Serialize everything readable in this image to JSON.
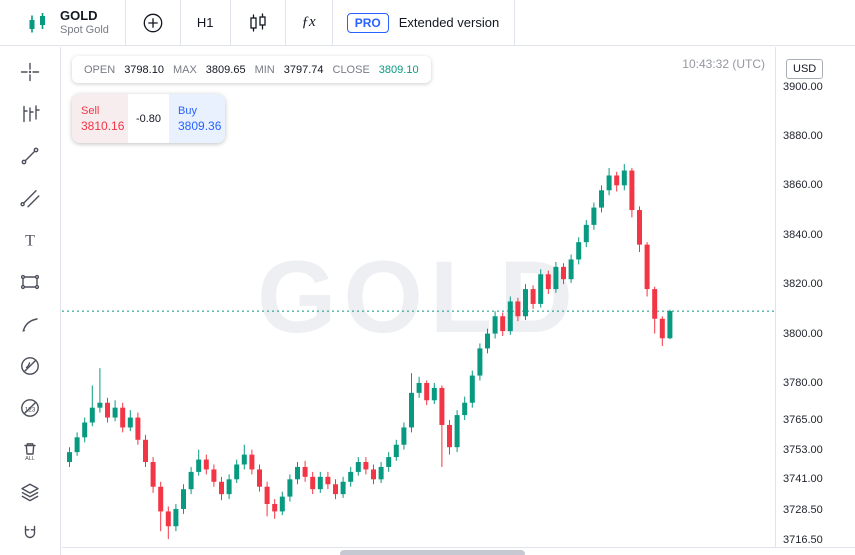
{
  "colors": {
    "up": "#089981",
    "down": "#f23645",
    "accent": "#2962ff",
    "sell_red": "#f23645"
  },
  "header": {
    "symbol": "GOLD",
    "symbol_sub": "Spot Gold",
    "timeframe": "H1",
    "indicators_label": "ƒx",
    "pro_badge": "PRO",
    "extended_label": "Extended version"
  },
  "sidebar": {
    "icons": [
      "crosshair-icon",
      "bars-pattern-icon",
      "trend-line-icon",
      "pitchfork-icon",
      "text-icon",
      "shapes-icon",
      "brush-icon",
      "hide-drawings-icon",
      "hide-indicators-icon",
      "remove-all-icon",
      "layers-icon",
      "magnet-icon"
    ],
    "text_tool_glyph": "T",
    "hide_marks_glyph": "123",
    "remove_all_glyph": "ALL"
  },
  "chart": {
    "watermark": "GOLD",
    "clock": "10:43:32 (UTC)",
    "ohlc": {
      "open_label": "OPEN",
      "open": "3798.10",
      "max_label": "MAX",
      "max": "3809.65",
      "min_label": "MIN",
      "min": "3797.74",
      "close_label": "CLOSE",
      "close": "3809.10"
    },
    "trade_widget": {
      "sell_label": "Sell",
      "sell_price": "3810.16",
      "spread": "-0.80",
      "buy_label": "Buy",
      "buy_price": "3809.36"
    },
    "axis": {
      "currency": "USD"
    }
  },
  "chart_data": {
    "type": "candlestick",
    "symbol": "GOLD",
    "timeframe": "H1",
    "grid": false,
    "price_range": [
      3713.6,
      3916.0
    ],
    "current_price": 3809.1,
    "y_ticks": [
      {
        "price": 3900.0,
        "label": "3900.00"
      },
      {
        "price": 3880.0,
        "label": "3880.00"
      },
      {
        "price": 3860.0,
        "label": "3860.00"
      },
      {
        "price": 3840.0,
        "label": "3840.00"
      },
      {
        "price": 3820.0,
        "label": "3820.00"
      },
      {
        "price": 3800.0,
        "label": "3800.00"
      },
      {
        "price": 3780.0,
        "label": "3780.00"
      },
      {
        "price": 3765.0,
        "label": "3765.00"
      },
      {
        "price": 3753.0,
        "label": "3753.00"
      },
      {
        "price": 3741.0,
        "label": "3741.00"
      },
      {
        "price": 3728.5,
        "label": "3728.50"
      },
      {
        "price": 3716.5,
        "label": "3716.50"
      }
    ],
    "candles": [
      [
        3748,
        3754,
        3746,
        3752
      ],
      [
        3752,
        3760,
        3750.5,
        3758
      ],
      [
        3758,
        3766,
        3756,
        3764
      ],
      [
        3764,
        3779,
        3762.5,
        3770
      ],
      [
        3770,
        3786,
        3768,
        3772
      ],
      [
        3772,
        3774,
        3764,
        3766
      ],
      [
        3766,
        3773,
        3764.5,
        3770
      ],
      [
        3770,
        3772,
        3760,
        3762
      ],
      [
        3762,
        3769,
        3760.5,
        3766
      ],
      [
        3766,
        3768,
        3755,
        3757
      ],
      [
        3757,
        3759,
        3746,
        3748
      ],
      [
        3748,
        3750,
        3735.5,
        3738
      ],
      [
        3738,
        3740,
        3720,
        3728
      ],
      [
        3728,
        3730,
        3716.8,
        3722
      ],
      [
        3722,
        3731,
        3720,
        3729
      ],
      [
        3729,
        3739,
        3727,
        3737
      ],
      [
        3737,
        3746,
        3735,
        3744
      ],
      [
        3744,
        3753,
        3742.5,
        3749
      ],
      [
        3749,
        3751,
        3743,
        3745
      ],
      [
        3745,
        3747,
        3738,
        3740
      ],
      [
        3740,
        3742,
        3732.5,
        3735
      ],
      [
        3735,
        3743,
        3733,
        3741
      ],
      [
        3741,
        3749,
        3739.5,
        3747
      ],
      [
        3747,
        3755,
        3745,
        3751
      ],
      [
        3751,
        3753,
        3743,
        3745
      ],
      [
        3745,
        3747,
        3736,
        3738
      ],
      [
        3738,
        3740,
        3726,
        3731
      ],
      [
        3731,
        3733,
        3725,
        3728
      ],
      [
        3728,
        3736,
        3726.5,
        3734
      ],
      [
        3734,
        3743,
        3732,
        3741
      ],
      [
        3741,
        3748,
        3739,
        3746
      ],
      [
        3746,
        3748.5,
        3740,
        3742
      ],
      [
        3742,
        3744,
        3735,
        3737
      ],
      [
        3737,
        3744,
        3735.5,
        3742
      ],
      [
        3742,
        3744,
        3737,
        3739
      ],
      [
        3739,
        3741,
        3733,
        3735
      ],
      [
        3735,
        3742,
        3733.5,
        3740
      ],
      [
        3740,
        3746,
        3738,
        3744
      ],
      [
        3744,
        3750,
        3742.5,
        3748
      ],
      [
        3748,
        3750,
        3743,
        3745
      ],
      [
        3745,
        3747,
        3739,
        3741
      ],
      [
        3741,
        3748,
        3739.5,
        3746
      ],
      [
        3746,
        3752,
        3744,
        3750
      ],
      [
        3750,
        3757,
        3748.5,
        3755
      ],
      [
        3755,
        3764,
        3753,
        3762
      ],
      [
        3762,
        3784,
        3760,
        3776
      ],
      [
        3776,
        3782.5,
        3774,
        3780
      ],
      [
        3780,
        3781,
        3771,
        3773
      ],
      [
        3773,
        3780,
        3771.5,
        3778
      ],
      [
        3778,
        3779,
        3746,
        3763
      ],
      [
        3763,
        3765,
        3751,
        3754
      ],
      [
        3754,
        3769,
        3752,
        3767
      ],
      [
        3767,
        3774.5,
        3765,
        3772
      ],
      [
        3772,
        3785,
        3770,
        3783
      ],
      [
        3783,
        3796,
        3781,
        3794
      ],
      [
        3794,
        3802,
        3792,
        3800
      ],
      [
        3800,
        3809,
        3798,
        3807
      ],
      [
        3807,
        3808.5,
        3799,
        3801
      ],
      [
        3801,
        3815,
        3799.5,
        3813
      ],
      [
        3813,
        3814.5,
        3805,
        3807
      ],
      [
        3807,
        3820,
        3805.5,
        3818
      ],
      [
        3818,
        3819.5,
        3810,
        3812
      ],
      [
        3812,
        3826,
        3810.5,
        3824
      ],
      [
        3824,
        3825.5,
        3816,
        3818
      ],
      [
        3818,
        3829,
        3816.5,
        3827
      ],
      [
        3827,
        3828.5,
        3820,
        3822
      ],
      [
        3822,
        3832,
        3820.5,
        3830
      ],
      [
        3830,
        3839,
        3828,
        3837
      ],
      [
        3837,
        3846,
        3835,
        3844
      ],
      [
        3844,
        3853,
        3842,
        3851
      ],
      [
        3851,
        3860,
        3849,
        3858
      ],
      [
        3858,
        3867,
        3856,
        3864
      ],
      [
        3864,
        3865.5,
        3857.5,
        3860
      ],
      [
        3860,
        3868.6,
        3858,
        3866
      ],
      [
        3866,
        3867,
        3847,
        3850
      ],
      [
        3850,
        3851.5,
        3833,
        3836
      ],
      [
        3836,
        3837,
        3815,
        3818
      ],
      [
        3818,
        3819,
        3800,
        3806
      ],
      [
        3806,
        3807,
        3795,
        3798.1
      ],
      [
        3798.1,
        3809.65,
        3797.74,
        3809.1
      ]
    ]
  }
}
